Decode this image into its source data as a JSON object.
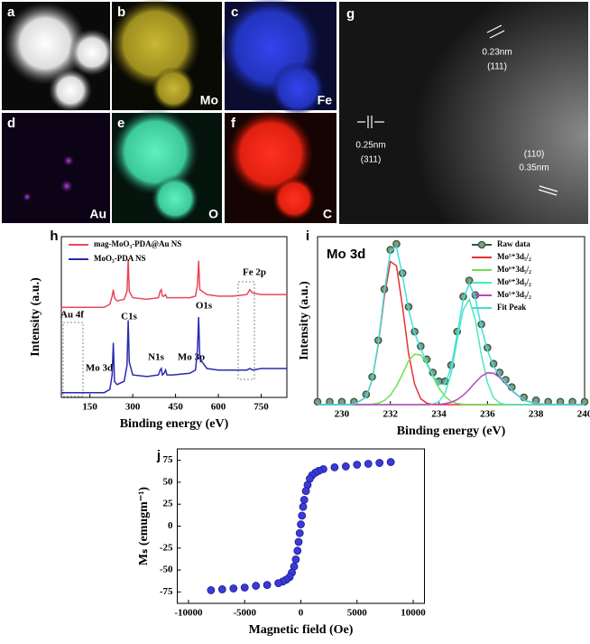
{
  "images": {
    "panels": [
      {
        "letter": "a"
      },
      {
        "letter": "b",
        "label": "Mo"
      },
      {
        "letter": "c",
        "label": "Fe"
      },
      {
        "letter": "d",
        "label": "Au"
      },
      {
        "letter": "e",
        "label": "O"
      },
      {
        "letter": "f",
        "label": "C"
      },
      {
        "letter": "g",
        "annotations": [
          "0.23nm",
          "(111)",
          "0.25nm",
          "(311)",
          "(110)",
          "0.35nm"
        ]
      }
    ]
  },
  "chart_data": [
    {
      "type": "line",
      "panel": "h",
      "xlabel": "Binding energy (eV)",
      "ylabel": "Intensity (a.u.)",
      "x": [
        50,
        100,
        150,
        200,
        220,
        228,
        232,
        236,
        245,
        270,
        280,
        284,
        288,
        300,
        350,
        390,
        396,
        400,
        404,
        410,
        415,
        420,
        440,
        500,
        520,
        527,
        531,
        535,
        560,
        600,
        650,
        700,
        710,
        720,
        750,
        800,
        840
      ],
      "xlim": [
        50,
        840
      ],
      "xticks": [
        150,
        300,
        450,
        600,
        750
      ],
      "ylim": [
        0,
        100
      ],
      "legend": "upper left",
      "series": [
        {
          "name": "mag-MoO₃-PDA@Au NS",
          "color": "#e8475a",
          "values": [
            56,
            56,
            56,
            56,
            58,
            63,
            67,
            62,
            60,
            61,
            66,
            86,
            66,
            62,
            61,
            62,
            66,
            67,
            63,
            63,
            64,
            62,
            62,
            62,
            63,
            70,
            85,
            67,
            64,
            63,
            63,
            64,
            67,
            65,
            64,
            64,
            64
          ]
        },
        {
          "name": "MoO₃-PDA NS",
          "color": "#2a2ab0",
          "values": [
            3,
            3,
            3,
            3,
            5,
            14,
            34,
            10,
            8,
            10,
            20,
            48,
            22,
            14,
            13,
            14,
            17,
            18,
            14,
            15,
            17,
            14,
            14,
            15,
            17,
            30,
            50,
            24,
            18,
            17,
            17,
            17,
            18,
            17,
            18,
            18,
            18
          ]
        }
      ],
      "annotations": [
        "Au 4f",
        "Fe 2p",
        "C1s",
        "O1s",
        "N1s",
        "Mo 3p",
        "Mo 3d"
      ]
    },
    {
      "type": "line",
      "panel": "i",
      "title": "Mo 3d",
      "xlabel": "Binding energy (eV)",
      "ylabel": "Intensity (a.u.)",
      "x": [
        229,
        229.5,
        230,
        230.5,
        231,
        231.25,
        231.5,
        231.75,
        232,
        232.25,
        232.5,
        232.75,
        233,
        233.25,
        233.5,
        233.75,
        234,
        234.25,
        234.5,
        234.75,
        235,
        235.25,
        235.5,
        235.75,
        236,
        236.25,
        236.5,
        236.75,
        237,
        237.5,
        238,
        238.5,
        239,
        239.5,
        240
      ],
      "xlim": [
        229,
        240
      ],
      "xticks": [
        230,
        232,
        234,
        236,
        238,
        240
      ],
      "ylim": [
        0,
        115
      ],
      "legend": "upper right",
      "series": [
        {
          "name": "Raw data",
          "color": "#2e5e3a",
          "marker": "circle",
          "values": [
            2,
            2,
            2,
            2,
            7,
            19,
            44,
            79,
            106,
            110,
            90,
            67,
            50,
            40,
            31,
            22,
            16,
            16,
            27,
            50,
            74,
            85,
            75,
            55,
            39,
            28,
            22,
            17,
            12,
            5,
            3,
            2,
            2,
            2,
            2
          ]
        },
        {
          "name": "Mo⁵⁺3d₅/₂",
          "color": "#e8302f",
          "values": [
            0,
            0,
            0,
            0.2,
            5,
            17,
            41,
            74,
            98,
            95,
            67,
            35,
            14,
            4,
            1,
            0,
            0,
            0,
            0,
            0,
            0,
            0,
            0,
            0,
            0,
            0,
            0,
            0,
            0,
            0,
            0,
            0,
            0,
            0,
            0
          ]
        },
        {
          "name": "Mo⁶⁺3d₅/₂",
          "color": "#6fe04a",
          "values": [
            0,
            0,
            0,
            0,
            0.1,
            0.3,
            1,
            2.8,
            6.5,
            12.8,
            21,
            30,
            34.5,
            34,
            28,
            19.5,
            11.4,
            5.6,
            2.3,
            0.8,
            0.2,
            0,
            0,
            0,
            0,
            0,
            0,
            0,
            0,
            0,
            0,
            0,
            0,
            0,
            0
          ]
        },
        {
          "name": "Mo⁶⁺3d₃/₂",
          "color": "#4de8c0",
          "values": [
            0,
            0,
            0,
            0,
            0,
            0,
            0,
            0,
            0,
            0,
            0,
            0,
            0,
            0,
            0,
            0.4,
            2,
            7.8,
            21,
            44,
            65,
            72,
            58,
            34,
            15,
            4.7,
            1.1,
            0.2,
            0,
            0,
            0,
            0,
            0,
            0,
            0
          ]
        },
        {
          "name": "Mo⁵⁺3d₃/₂",
          "color": "#c040c0",
          "values": [
            0,
            0,
            0,
            0,
            0,
            0,
            0,
            0,
            0,
            0,
            0,
            0,
            0,
            0,
            0,
            0.1,
            0.2,
            0.7,
            1.6,
            3.4,
            6.4,
            10.5,
            15.2,
            19.4,
            21.8,
            21.5,
            18.7,
            14.3,
            9.6,
            3,
            0.6,
            0.1,
            0,
            0,
            0
          ]
        },
        {
          "name": "Fit Peak",
          "color": "#44dddd",
          "values": [
            0,
            0,
            0,
            0.2,
            5,
            17,
            42,
            77,
            105,
            108,
            88,
            65,
            49,
            38,
            29,
            20,
            14,
            14,
            25,
            48,
            72,
            83,
            73,
            53,
            37,
            26,
            20,
            15,
            10,
            3,
            1,
            0,
            0,
            0,
            0
          ]
        }
      ]
    },
    {
      "type": "scatter",
      "panel": "j",
      "xlabel": "Magnetic field (Oe)",
      "ylabel": "Mₛ (emugm⁻¹)",
      "color": "#3a3ad8",
      "x": [
        8000,
        7000,
        6000,
        5000,
        4000,
        3000,
        2000,
        1600,
        1300,
        1000,
        800,
        600,
        450,
        300,
        200,
        100,
        0,
        -100,
        -200,
        -300,
        -450,
        -600,
        -800,
        -1000,
        -1300,
        -1600,
        -2000,
        -3000,
        -4000,
        -5000,
        -6000,
        -7000,
        -8000
      ],
      "values": [
        73,
        72,
        71,
        70,
        68,
        67,
        65,
        63,
        61,
        58,
        54,
        47,
        40,
        30,
        22,
        12,
        2,
        -8,
        -18,
        -28,
        -38,
        -46,
        -53,
        -58,
        -61,
        -63,
        -65,
        -67,
        -68,
        -70,
        -71,
        -72,
        -73
      ],
      "xlim": [
        -11000,
        11000
      ],
      "xticks": [
        -10000,
        -5000,
        0,
        5000,
        10000
      ],
      "ylim": [
        -88,
        88
      ],
      "yticks": [
        75,
        50,
        25,
        0,
        -25,
        -50,
        -75
      ]
    }
  ]
}
